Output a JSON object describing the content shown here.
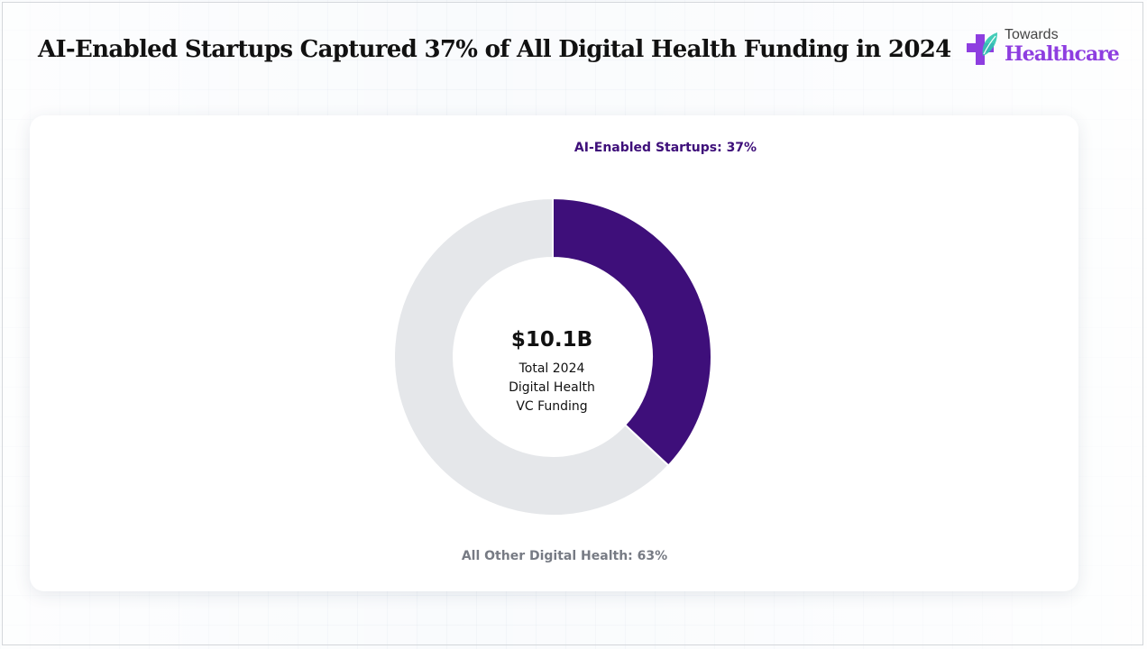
{
  "header": {
    "title": "AI-Enabled Startups Captured 37% of All Digital Health Funding in 2024"
  },
  "logo": {
    "top_text": "Towards",
    "main_text": "Healthcare"
  },
  "chart_data": {
    "type": "pie",
    "variant": "donut",
    "title": "AI-Enabled Startups Captured 37% of All Digital Health Funding in 2024",
    "slices": [
      {
        "label": "AI-Enabled Startups",
        "value": 37,
        "display": "AI-Enabled Startups: 37%",
        "color": "#3e0f7a"
      },
      {
        "label": "All Other Digital Health",
        "value": 63,
        "display": "All Other Digital Health: 63%",
        "color": "#e5e7ea"
      }
    ],
    "center": {
      "value": "$10.1B",
      "caption_lines": [
        "Total 2024",
        "Digital Health",
        "VC Funding"
      ]
    }
  },
  "colors": {
    "accent": "#3e0f7a",
    "muted_slice": "#e5e7ea",
    "brand": "#8e3ee0"
  }
}
